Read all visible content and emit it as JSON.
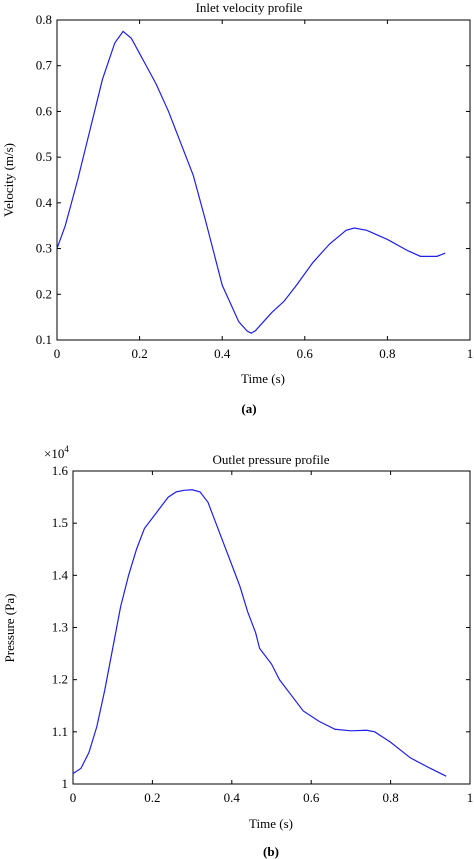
{
  "chart_data": [
    {
      "panel_label": "(a)",
      "type": "line",
      "title": "Inlet velocity profile",
      "xlabel": "Time (s)",
      "ylabel": "Velocity (m/s)",
      "xlim": [
        0,
        1
      ],
      "ylim": [
        0.1,
        0.8
      ],
      "xticks": [
        "0",
        "0.2",
        "0.4",
        "0.6",
        "0.8",
        "1"
      ],
      "yticks": [
        "0.1",
        "0.2",
        "0.3",
        "0.4",
        "0.5",
        "0.6",
        "0.7",
        "0.8"
      ],
      "line_color": "#1f1fe6",
      "series": [
        {
          "x": [
            0,
            0.02,
            0.05,
            0.08,
            0.11,
            0.14,
            0.16,
            0.18,
            0.21,
            0.24,
            0.27,
            0.3,
            0.33,
            0.36,
            0.38,
            0.4,
            0.42,
            0.44,
            0.46,
            0.47,
            0.48,
            0.5,
            0.52,
            0.55,
            0.58,
            0.62,
            0.66,
            0.7,
            0.72,
            0.75,
            0.8,
            0.85,
            0.88,
            0.92,
            0.94
          ],
          "y": [
            0.3,
            0.35,
            0.45,
            0.56,
            0.67,
            0.75,
            0.775,
            0.76,
            0.71,
            0.66,
            0.6,
            0.53,
            0.46,
            0.36,
            0.29,
            0.22,
            0.18,
            0.14,
            0.12,
            0.115,
            0.12,
            0.14,
            0.16,
            0.185,
            0.22,
            0.27,
            0.31,
            0.34,
            0.345,
            0.34,
            0.32,
            0.295,
            0.283,
            0.283,
            0.29
          ]
        }
      ]
    },
    {
      "panel_label": "(b)",
      "type": "line",
      "title": "Outlet pressure profile",
      "xlabel": "Time (s)",
      "ylabel": "Pressure (Pa)",
      "y_multiplier": "×10",
      "y_exponent": "4",
      "xlim": [
        0,
        1
      ],
      "ylim": [
        1.0,
        1.6
      ],
      "xticks": [
        "0",
        "0.2",
        "0.4",
        "0.6",
        "0.8",
        "1"
      ],
      "yticks": [
        "1",
        "1.1",
        "1.2",
        "1.3",
        "1.4",
        "1.5",
        "1.6"
      ],
      "line_color": "#1f1fe6",
      "series": [
        {
          "x": [
            0,
            0.02,
            0.04,
            0.06,
            0.08,
            0.1,
            0.12,
            0.14,
            0.16,
            0.18,
            0.2,
            0.22,
            0.24,
            0.26,
            0.28,
            0.3,
            0.32,
            0.34,
            0.36,
            0.38,
            0.4,
            0.42,
            0.44,
            0.46,
            0.47,
            0.48,
            0.5,
            0.52,
            0.55,
            0.58,
            0.62,
            0.66,
            0.7,
            0.74,
            0.76,
            0.8,
            0.85,
            0.9,
            0.94
          ],
          "y": [
            1.02,
            1.03,
            1.06,
            1.11,
            1.18,
            1.26,
            1.34,
            1.4,
            1.45,
            1.49,
            1.51,
            1.53,
            1.55,
            1.56,
            1.563,
            1.564,
            1.56,
            1.54,
            1.5,
            1.46,
            1.42,
            1.38,
            1.33,
            1.29,
            1.26,
            1.25,
            1.23,
            1.2,
            1.17,
            1.14,
            1.12,
            1.105,
            1.102,
            1.103,
            1.1,
            1.08,
            1.05,
            1.03,
            1.015
          ]
        }
      ]
    }
  ]
}
